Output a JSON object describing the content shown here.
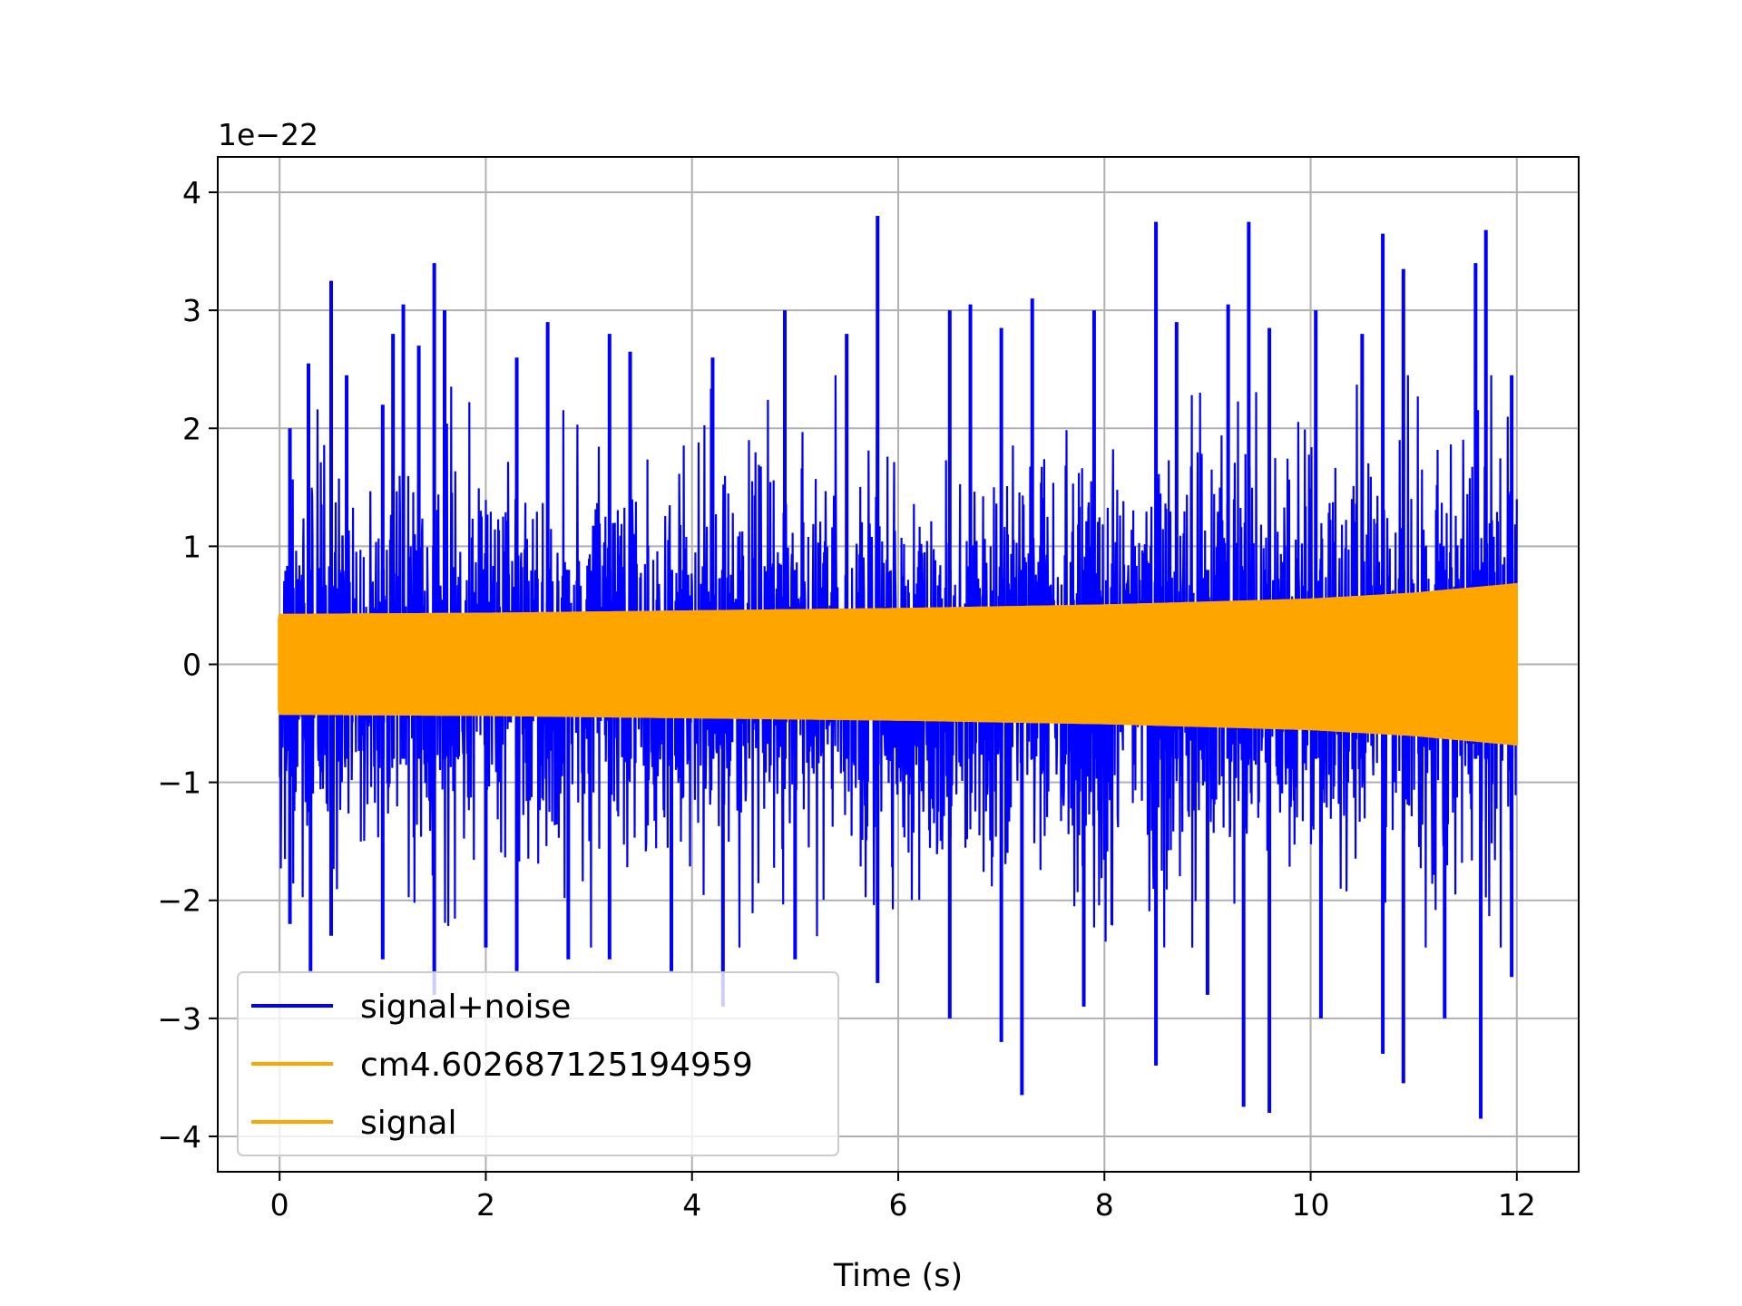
{
  "chart_data": {
    "type": "line",
    "title": "",
    "xlabel": "Time (s)",
    "ylabel": "",
    "offset_text": "1e−22",
    "y_scale": 1e-22,
    "xlim": [
      -0.6,
      12.6
    ],
    "ylim": [
      -4.3,
      4.3
    ],
    "grid": true,
    "legend_position": "lower-left",
    "x_ticks": [
      0,
      2,
      4,
      6,
      8,
      10,
      12
    ],
    "x_tick_labels": [
      "0",
      "2",
      "4",
      "6",
      "8",
      "10",
      "12"
    ],
    "y_ticks": [
      -4,
      -3,
      -2,
      -1,
      0,
      1,
      2,
      3,
      4
    ],
    "y_tick_labels": [
      "−4",
      "−3",
      "−2",
      "−1",
      "0",
      "1",
      "2",
      "3",
      "4"
    ],
    "series": [
      {
        "name": "signal+noise",
        "color": "#0000ff",
        "duration_s": 12.0,
        "noise_rms": 0.72,
        "signal_envelope": {
          "t": [
            0,
            2,
            4,
            6,
            8,
            10,
            11,
            12
          ],
          "amplitude": [
            0.42,
            0.43,
            0.45,
            0.47,
            0.5,
            0.55,
            0.6,
            0.68
          ]
        },
        "upper_spikes": [
          {
            "t": 0.1,
            "y": 2.0
          },
          {
            "t": 0.28,
            "y": 2.55
          },
          {
            "t": 0.5,
            "y": 3.25
          },
          {
            "t": 0.65,
            "y": 2.45
          },
          {
            "t": 1.0,
            "y": 2.2
          },
          {
            "t": 1.1,
            "y": 2.8
          },
          {
            "t": 1.2,
            "y": 3.05
          },
          {
            "t": 1.35,
            "y": 2.7
          },
          {
            "t": 1.5,
            "y": 3.4
          },
          {
            "t": 1.6,
            "y": 3.0
          },
          {
            "t": 2.3,
            "y": 2.6
          },
          {
            "t": 2.6,
            "y": 2.9
          },
          {
            "t": 3.2,
            "y": 2.8
          },
          {
            "t": 3.4,
            "y": 2.65
          },
          {
            "t": 4.2,
            "y": 2.6
          },
          {
            "t": 4.9,
            "y": 3.0
          },
          {
            "t": 5.5,
            "y": 2.8
          },
          {
            "t": 5.8,
            "y": 3.8
          },
          {
            "t": 6.5,
            "y": 3.0
          },
          {
            "t": 6.7,
            "y": 3.05
          },
          {
            "t": 7.0,
            "y": 2.85
          },
          {
            "t": 7.3,
            "y": 3.1
          },
          {
            "t": 7.9,
            "y": 3.0
          },
          {
            "t": 8.5,
            "y": 3.75
          },
          {
            "t": 8.7,
            "y": 2.9
          },
          {
            "t": 9.2,
            "y": 3.05
          },
          {
            "t": 9.4,
            "y": 3.75
          },
          {
            "t": 9.6,
            "y": 2.85
          },
          {
            "t": 10.05,
            "y": 3.0
          },
          {
            "t": 10.5,
            "y": 2.8
          },
          {
            "t": 10.7,
            "y": 3.65
          },
          {
            "t": 10.9,
            "y": 3.35
          },
          {
            "t": 11.6,
            "y": 3.4
          },
          {
            "t": 11.7,
            "y": 3.68
          },
          {
            "t": 11.95,
            "y": 2.45
          }
        ],
        "lower_spikes": [
          {
            "t": 0.1,
            "y": -2.2
          },
          {
            "t": 0.3,
            "y": -2.6
          },
          {
            "t": 0.5,
            "y": -2.3
          },
          {
            "t": 1.0,
            "y": -2.5
          },
          {
            "t": 1.5,
            "y": -2.8
          },
          {
            "t": 2.0,
            "y": -2.4
          },
          {
            "t": 2.3,
            "y": -2.6
          },
          {
            "t": 2.8,
            "y": -2.5
          },
          {
            "t": 3.2,
            "y": -2.5
          },
          {
            "t": 3.8,
            "y": -2.6
          },
          {
            "t": 4.3,
            "y": -2.9
          },
          {
            "t": 5.0,
            "y": -2.5
          },
          {
            "t": 5.8,
            "y": -2.7
          },
          {
            "t": 6.5,
            "y": -3.0
          },
          {
            "t": 7.0,
            "y": -3.2
          },
          {
            "t": 7.2,
            "y": -3.65
          },
          {
            "t": 7.8,
            "y": -2.9
          },
          {
            "t": 8.5,
            "y": -3.4
          },
          {
            "t": 9.0,
            "y": -2.8
          },
          {
            "t": 9.35,
            "y": -3.75
          },
          {
            "t": 9.6,
            "y": -3.8
          },
          {
            "t": 10.1,
            "y": -3.0
          },
          {
            "t": 10.7,
            "y": -3.3
          },
          {
            "t": 10.9,
            "y": -3.55
          },
          {
            "t": 11.3,
            "y": -3.0
          },
          {
            "t": 11.65,
            "y": -3.85
          },
          {
            "t": 11.95,
            "y": -2.65
          }
        ]
      },
      {
        "name": "cm4.602687125194959",
        "color": "#ffa500",
        "envelope": {
          "t": [
            0,
            2,
            4,
            6,
            8,
            10,
            11,
            12
          ],
          "amplitude": [
            0.42,
            0.43,
            0.45,
            0.47,
            0.5,
            0.55,
            0.6,
            0.68
          ]
        }
      },
      {
        "name": "signal",
        "color": "#ffa500",
        "envelope": {
          "t": [
            0,
            2,
            4,
            6,
            8,
            10,
            11,
            12
          ],
          "amplitude": [
            0.42,
            0.43,
            0.45,
            0.47,
            0.5,
            0.55,
            0.6,
            0.68
          ]
        }
      }
    ]
  }
}
